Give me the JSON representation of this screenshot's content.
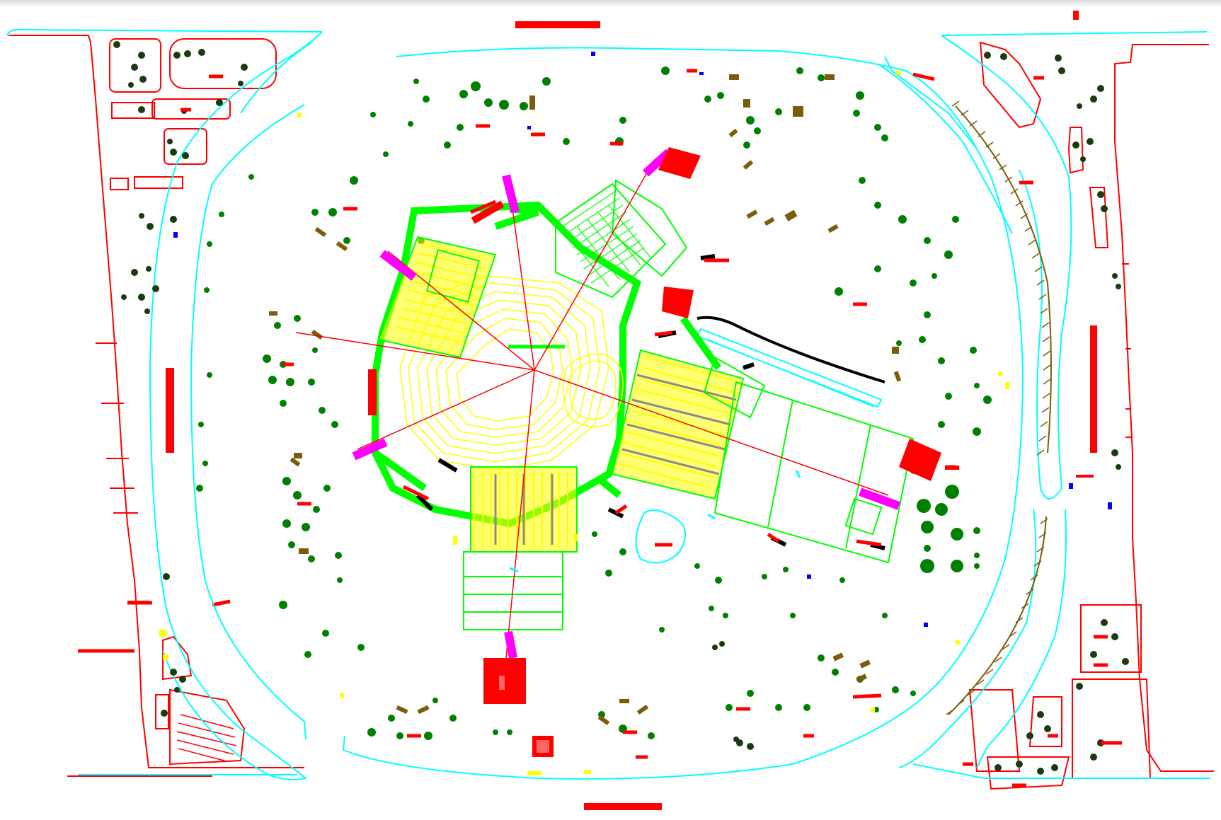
{
  "drawing": {
    "background": "#ffffff",
    "palette": {
      "boundary": "#ff0000",
      "road": "#00ffff",
      "structure": "#00ff00",
      "seating": "#ffff00",
      "marker": "#ff00ff",
      "tree": "#008000",
      "shrub": "#7a5c0a",
      "dark_tree": "#1a3a10",
      "rail": "#000000",
      "point": "#0000ff"
    },
    "icons": [
      "tree-icon",
      "shrub-icon",
      "building-block-icon",
      "compass-line-icon"
    ]
  }
}
